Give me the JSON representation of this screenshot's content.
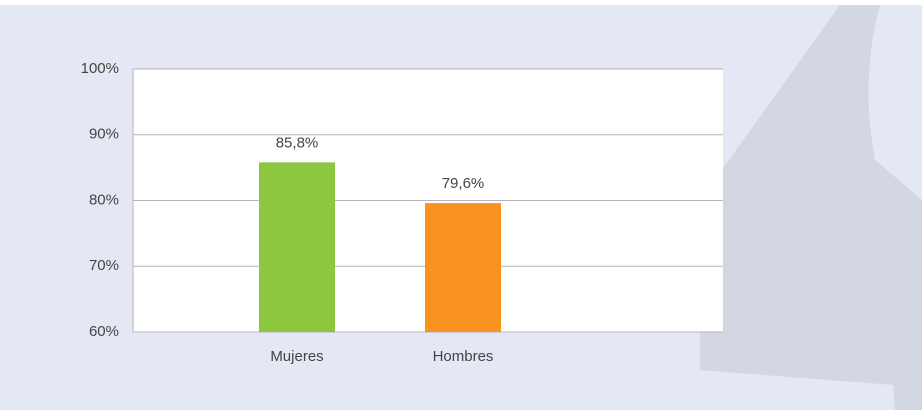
{
  "chart_data": {
    "type": "bar",
    "categories": [
      "Mujeres",
      "Hombres"
    ],
    "values": [
      85.8,
      79.6
    ],
    "value_labels": [
      "85,8%",
      "79,6%"
    ],
    "colors": [
      "#8dc63f",
      "#f7931e"
    ],
    "ylim": [
      60,
      100
    ],
    "yticks": [
      {
        "value": 60,
        "label": "60%"
      },
      {
        "value": 70,
        "label": "70%"
      },
      {
        "value": 80,
        "label": "80%"
      },
      {
        "value": 90,
        "label": "90%"
      },
      {
        "value": 100,
        "label": "100%"
      }
    ],
    "grid": true
  }
}
